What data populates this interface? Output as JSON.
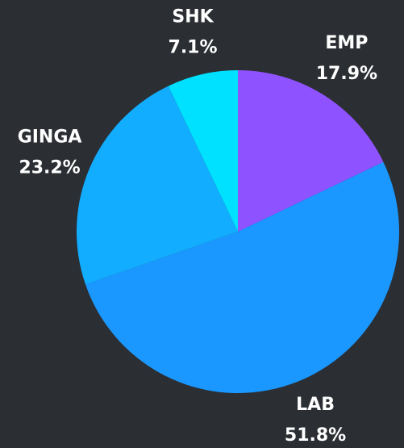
{
  "chart_data": {
    "type": "pie",
    "categories": [
      "EMP",
      "LAB",
      "GINGA",
      "SHK"
    ],
    "values": [
      17.9,
      51.8,
      23.2,
      7.1
    ],
    "value_labels": [
      "17.9%",
      "51.8%",
      "23.2%",
      "7.1%"
    ],
    "colors": [
      "#8f52ff",
      "#1a98ff",
      "#12adff",
      "#00e0ff"
    ]
  }
}
